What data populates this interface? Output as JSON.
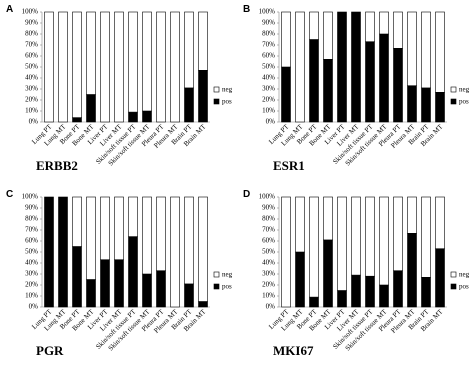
{
  "chart_data": [
    {
      "type": "stacked-bar",
      "panel_label": "A",
      "title": "ERBB2",
      "categories": [
        "Lung PT",
        "Lung MT",
        "Bone PT",
        "Bone MT",
        "Liver PT",
        "Liver MT",
        "Skin/soft tissue PT",
        "Skin/soft tissue MT",
        "Pleura PT",
        "Pleura MT",
        "Brain PT",
        "Brain MT"
      ],
      "series": [
        {
          "name": "neg",
          "color": "#ffffff",
          "values": [
            100,
            100,
            96,
            75,
            100,
            100,
            91,
            90,
            100,
            100,
            69,
            53
          ]
        },
        {
          "name": "pos",
          "color": "#000000",
          "values": [
            0,
            0,
            4,
            25,
            0,
            0,
            9,
            10,
            0,
            0,
            31,
            47
          ]
        }
      ],
      "ylim": [
        0,
        100
      ],
      "yticks": [
        {
          "value": 0,
          "label": "0%"
        },
        {
          "value": 10,
          "label": "10%"
        },
        {
          "value": 20,
          "label": "20%"
        },
        {
          "value": 30,
          "label": "30%"
        },
        {
          "value": 40,
          "label": "40%"
        },
        {
          "value": 50,
          "label": "50%"
        },
        {
          "value": 60,
          "label": "60%"
        },
        {
          "value": 70,
          "label": "70%"
        },
        {
          "value": 80,
          "label": "80%"
        },
        {
          "value": 90,
          "label": "90%"
        },
        {
          "value": 100,
          "label": "100%"
        }
      ],
      "legend": "right"
    },
    {
      "type": "stacked-bar",
      "panel_label": "B",
      "title": "ESR1",
      "categories": [
        "Lung PT",
        "Lung MT",
        "Bone PT",
        "Bone MT",
        "Liver PT",
        "Liver MT",
        "Skin/soft tissue PT",
        "Skin/soft tissue MT",
        "Pleura PT",
        "Pleura MT",
        "Brain PT",
        "Brain MT"
      ],
      "series": [
        {
          "name": "neg",
          "color": "#ffffff",
          "values": [
            50,
            100,
            25,
            43,
            0,
            0,
            27,
            20,
            33,
            67,
            69,
            73
          ]
        },
        {
          "name": "pos",
          "color": "#000000",
          "values": [
            50,
            0,
            75,
            57,
            100,
            100,
            73,
            80,
            67,
            33,
            31,
            27
          ]
        }
      ],
      "ylim": [
        0,
        100
      ],
      "yticks": [
        {
          "value": 0,
          "label": "0%"
        },
        {
          "value": 10,
          "label": "10%"
        },
        {
          "value": 20,
          "label": "20%"
        },
        {
          "value": 30,
          "label": "30%"
        },
        {
          "value": 40,
          "label": "40%"
        },
        {
          "value": 50,
          "label": "50%"
        },
        {
          "value": 60,
          "label": "60%"
        },
        {
          "value": 70,
          "label": "70%"
        },
        {
          "value": 80,
          "label": "80%"
        },
        {
          "value": 90,
          "label": "90%"
        },
        {
          "value": 100,
          "label": "100%"
        }
      ],
      "legend": "right"
    },
    {
      "type": "stacked-bar",
      "panel_label": "C",
      "title": "PGR",
      "categories": [
        "Lung PT",
        "Lung MT",
        "Bone PT",
        "Bone MT",
        "Liver PT",
        "Liver MT",
        "Skin/soft tissue PT",
        "Skin/soft tissue MT",
        "Pleura PT",
        "Pleura MT",
        "Brain PT",
        "Brain MT"
      ],
      "series": [
        {
          "name": "neg",
          "color": "#ffffff",
          "values": [
            0,
            0,
            45,
            75,
            57,
            57,
            36,
            70,
            67,
            100,
            79,
            95
          ]
        },
        {
          "name": "pos",
          "color": "#000000",
          "values": [
            100,
            100,
            55,
            25,
            43,
            43,
            64,
            30,
            33,
            0,
            21,
            5
          ]
        }
      ],
      "ylim": [
        0,
        100
      ],
      "yticks": [
        {
          "value": 0,
          "label": "0%"
        },
        {
          "value": 10,
          "label": "10%"
        },
        {
          "value": 20,
          "label": "20%"
        },
        {
          "value": 30,
          "label": "30%"
        },
        {
          "value": 40,
          "label": "40%"
        },
        {
          "value": 50,
          "label": "50%"
        },
        {
          "value": 60,
          "label": "60%"
        },
        {
          "value": 70,
          "label": "70%"
        },
        {
          "value": 80,
          "label": "80%"
        },
        {
          "value": 90,
          "label": "90%"
        },
        {
          "value": 100,
          "label": "100%"
        }
      ],
      "legend": "right"
    },
    {
      "type": "stacked-bar",
      "panel_label": "D",
      "title": "MKI67",
      "categories": [
        "Lung PT",
        "Lung MT",
        "Bone PT",
        "Bone MT",
        "Liver PT",
        "Liver MT",
        "Skin/soft tissue PT",
        "Skin/soft tissue MT",
        "Pleura PT",
        "Pleura MT",
        "Brain PT",
        "Brain MT"
      ],
      "series": [
        {
          "name": "neg",
          "color": "#ffffff",
          "values": [
            100,
            50,
            91,
            39,
            85,
            71,
            72,
            80,
            67,
            33,
            73,
            47
          ]
        },
        {
          "name": "pos",
          "color": "#000000",
          "values": [
            0,
            50,
            9,
            61,
            15,
            29,
            28,
            20,
            33,
            67,
            27,
            53
          ]
        }
      ],
      "ylim": [
        0,
        100
      ],
      "yticks": [
        {
          "value": 0,
          "label": "0%"
        },
        {
          "value": 10,
          "label": "10%"
        },
        {
          "value": 20,
          "label": "20%"
        },
        {
          "value": 30,
          "label": "30%"
        },
        {
          "value": 40,
          "label": "40%"
        },
        {
          "value": 50,
          "label": "50%"
        },
        {
          "value": 60,
          "label": "60%"
        },
        {
          "value": 70,
          "label": "70%"
        },
        {
          "value": 80,
          "label": "80%"
        },
        {
          "value": 90,
          "label": "90%"
        },
        {
          "value": 100,
          "label": "100%"
        }
      ],
      "legend": "right"
    }
  ]
}
